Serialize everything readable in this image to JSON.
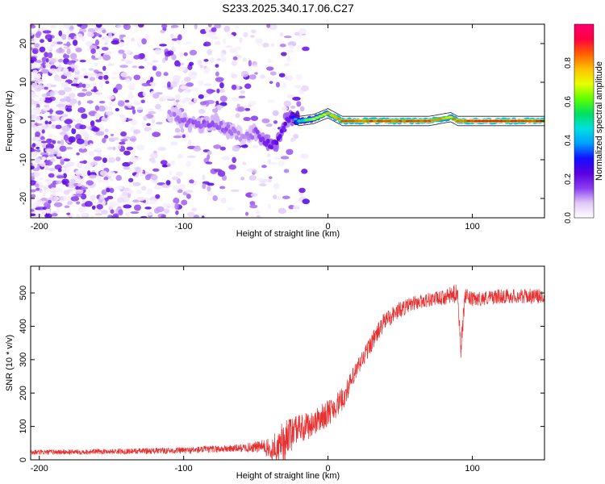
{
  "title": "S233.2025.340.17.06.C27",
  "chart_data": [
    {
      "type": "heatmap",
      "name": "spectrogram",
      "xlabel": "Height of straight line (km)",
      "ylabel": "Frequency (Hz)",
      "xlim": [
        -206,
        150
      ],
      "ylim": [
        -25,
        25
      ],
      "xticks": [
        -200,
        -100,
        0,
        100
      ],
      "yticks": [
        -20,
        -10,
        0,
        10,
        20
      ],
      "colorbar": {
        "label": "Normalized spectral amplitude",
        "range": [
          0,
          1
        ],
        "ticks": [
          "0.0",
          "0.2",
          "0.4",
          "0.6",
          "0.8"
        ],
        "colors": [
          "#ffffff",
          "#e0c8f8",
          "#8a3cf0",
          "#5a00e0",
          "#1010ff",
          "#00a0ff",
          "#00e0e0",
          "#00e060",
          "#60ff00",
          "#e8ff00",
          "#ffc000",
          "#ff6000",
          "#ff0040",
          "#ff0070"
        ]
      },
      "ridge_track": {
        "x": [
          -110,
          -100,
          -90,
          -80,
          -70,
          -60,
          -50,
          -40,
          -35,
          -30,
          -25,
          -20,
          -10,
          0,
          10,
          20,
          30,
          50,
          70,
          85,
          90,
          100,
          120,
          150
        ],
        "frequency": [
          2,
          0,
          -1,
          0,
          -2,
          -4,
          -3,
          -6,
          -5,
          0,
          1,
          0,
          0.5,
          2,
          0,
          0,
          0,
          0,
          0,
          1,
          0,
          0,
          0,
          0
        ],
        "amplitude": [
          0.15,
          0.2,
          0.2,
          0.2,
          0.2,
          0.15,
          0.2,
          0.3,
          0.3,
          0.3,
          0.3,
          0.55,
          0.7,
          0.8,
          0.9,
          0.9,
          0.92,
          0.92,
          0.92,
          0.8,
          0.9,
          0.95,
          0.95,
          0.95
        ]
      },
      "noise_region": {
        "x_range": [
          -206,
          -40
        ],
        "frequency_range": [
          -25,
          25
        ],
        "amplitude_range": [
          0.02,
          0.25
        ]
      }
    },
    {
      "type": "line",
      "name": "snr",
      "xlabel": "Height of straight line (km)",
      "ylabel": "SNR (10 * v/v)",
      "xlim": [
        -206,
        150
      ],
      "ylim": [
        0,
        580
      ],
      "xticks": [
        -200,
        -100,
        0,
        100
      ],
      "yticks": [
        0,
        100,
        200,
        300,
        400,
        500
      ],
      "color": "#e83030",
      "series": [
        {
          "name": "SNR",
          "x": [
            -206,
            -150,
            -100,
            -60,
            -45,
            -40,
            -30,
            -20,
            -10,
            0,
            10,
            20,
            30,
            40,
            50,
            60,
            70,
            80,
            90,
            92,
            95,
            100,
            120,
            150
          ],
          "y": [
            22,
            25,
            28,
            35,
            40,
            30,
            70,
            90,
            110,
            140,
            180,
            270,
            350,
            420,
            450,
            470,
            480,
            485,
            500,
            330,
            490,
            480,
            490,
            490
          ],
          "noise_amplitude": [
            8,
            8,
            10,
            12,
            20,
            35,
            50,
            45,
            40,
            40,
            35,
            30,
            28,
            28,
            25,
            22,
            22,
            22,
            30,
            30,
            25,
            22,
            22,
            22
          ]
        }
      ]
    }
  ]
}
